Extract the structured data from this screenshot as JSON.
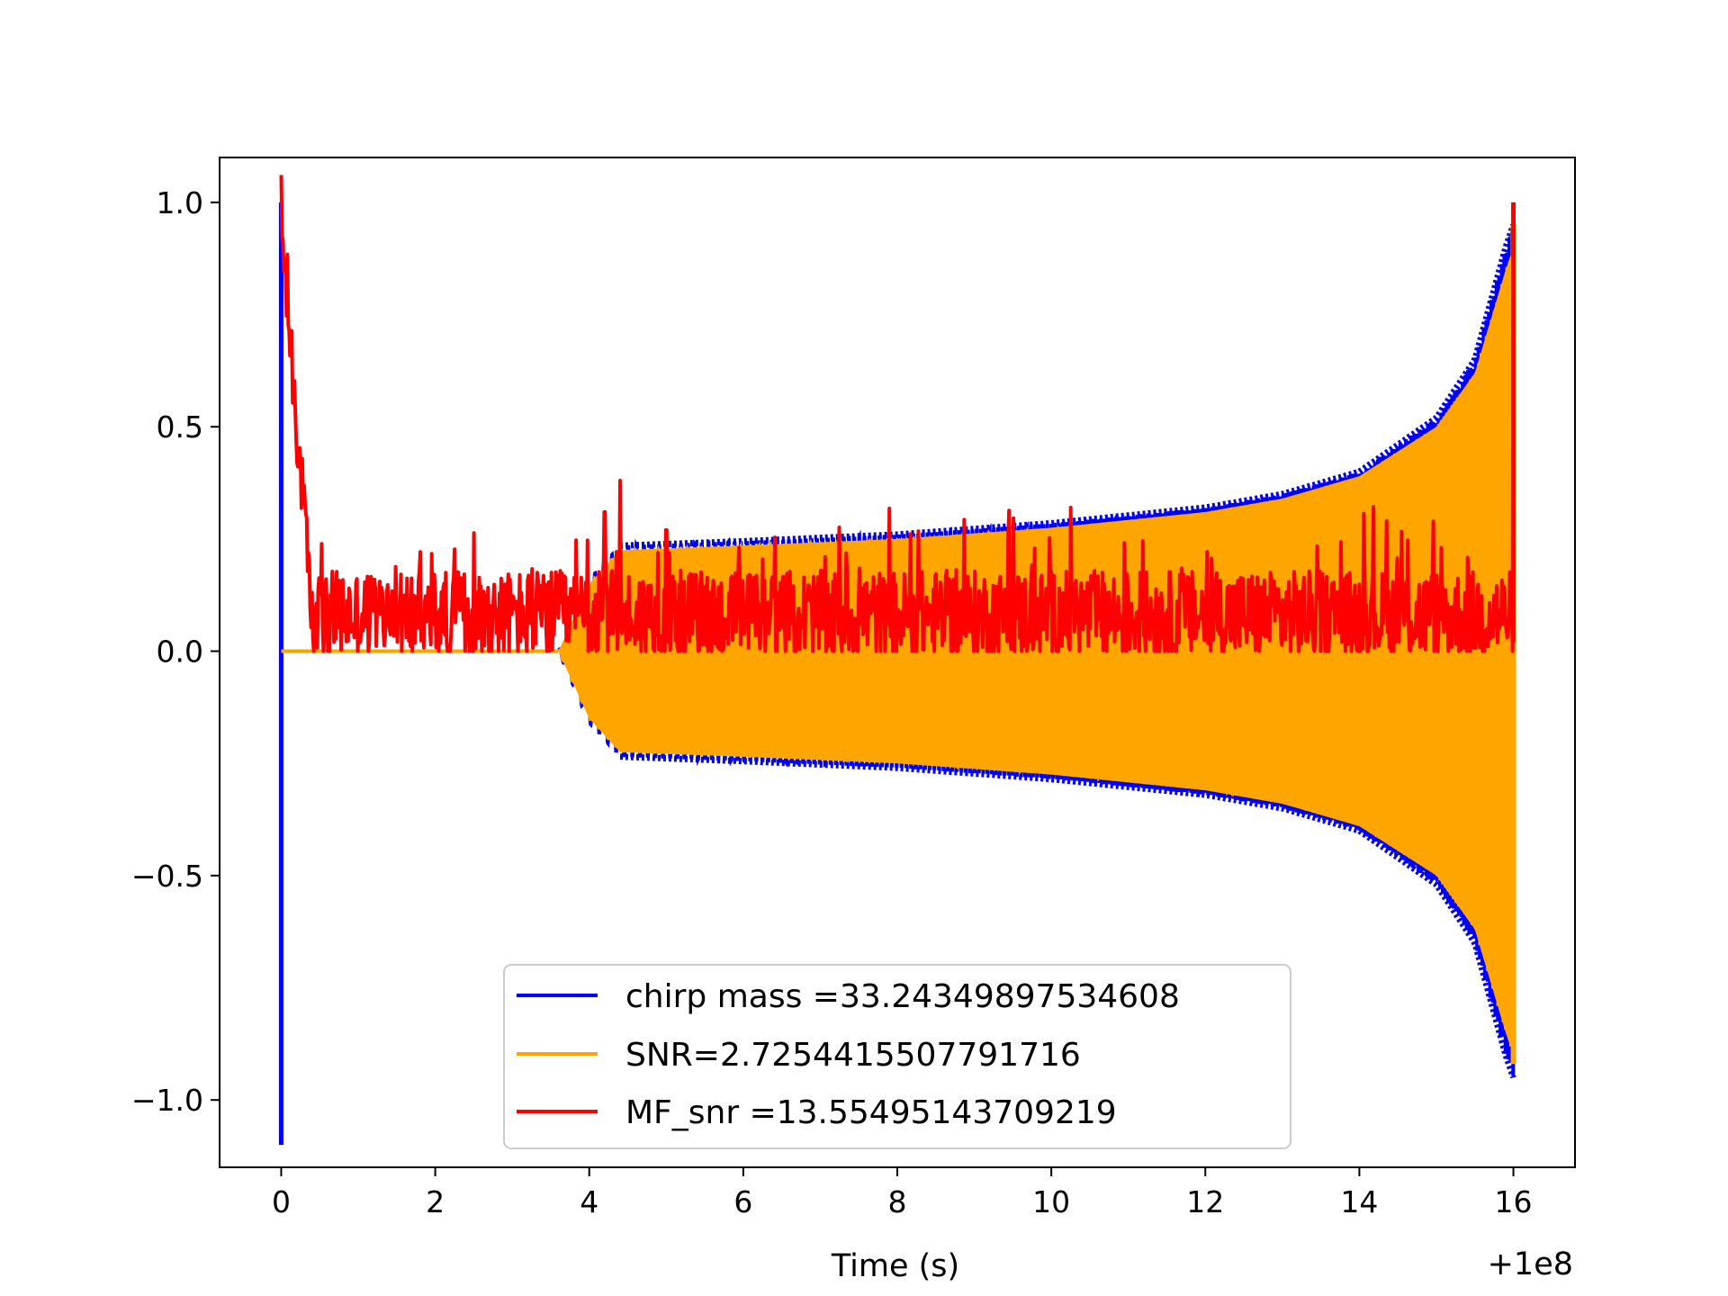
{
  "chart_data": {
    "type": "line",
    "title": "",
    "xlabel": "Time (s)",
    "ylabel": "",
    "x_offset_label": "+1e8",
    "xlim": [
      -0.8,
      16.8
    ],
    "ylim": [
      -1.15,
      1.1
    ],
    "x_ticks": [
      0,
      2,
      4,
      6,
      8,
      10,
      12,
      14,
      16
    ],
    "x_tick_labels": [
      "0",
      "2",
      "4",
      "6",
      "8",
      "10",
      "12",
      "14",
      "16"
    ],
    "y_ticks": [
      -1.0,
      -0.5,
      0.0,
      0.5,
      1.0
    ],
    "y_tick_labels": [
      "−1.0",
      "−0.5",
      "0.0",
      "0.5",
      "1.0"
    ],
    "legend_position": "lower-center",
    "series": [
      {
        "name": "chirp mass =33.24349897534608",
        "color": "#0000ff",
        "style": "oscillating-envelope",
        "spike_at": 0,
        "spike_range": [
          -1.1,
          1.0
        ],
        "start": 3.6,
        "end": 16.0,
        "envelope_points": [
          [
            3.6,
            0.0
          ],
          [
            4.0,
            0.16
          ],
          [
            4.4,
            0.235
          ],
          [
            6.0,
            0.245
          ],
          [
            8.0,
            0.26
          ],
          [
            10.0,
            0.285
          ],
          [
            12.0,
            0.32
          ],
          [
            13.0,
            0.35
          ],
          [
            14.0,
            0.4
          ],
          [
            15.0,
            0.52
          ],
          [
            15.5,
            0.65
          ],
          [
            15.9,
            0.9
          ],
          [
            16.0,
            0.95
          ]
        ],
        "lower_scale": 1.0
      },
      {
        "name": "SNR=2.7254415507791716",
        "color": "#ffa500",
        "style": "filled-oscillation",
        "flat_value": 0.0,
        "start": 3.6,
        "end": 16.0,
        "envelope_points": [
          [
            3.6,
            0.0
          ],
          [
            4.0,
            0.15
          ],
          [
            4.4,
            0.225
          ],
          [
            6.0,
            0.235
          ],
          [
            8.0,
            0.25
          ],
          [
            10.0,
            0.275
          ],
          [
            12.0,
            0.31
          ],
          [
            13.0,
            0.34
          ],
          [
            14.0,
            0.39
          ],
          [
            15.0,
            0.5
          ],
          [
            15.5,
            0.62
          ],
          [
            15.9,
            0.85
          ],
          [
            16.0,
            0.9
          ]
        ]
      },
      {
        "name": "MF_snr =13.55495143709219",
        "color": "#ff0000",
        "style": "noisy-line",
        "start_value": 0.95,
        "decay_end": 0.4,
        "baseline": 0.08,
        "noise_amplitude": 0.1,
        "peaks": [
          [
            4.2,
            0.31
          ],
          [
            4.4,
            0.38
          ],
          [
            5.0,
            0.27
          ],
          [
            10.25,
            0.32
          ],
          [
            14.35,
            0.29
          ],
          [
            16.0,
            1.0
          ]
        ],
        "end": 16.0
      }
    ]
  }
}
